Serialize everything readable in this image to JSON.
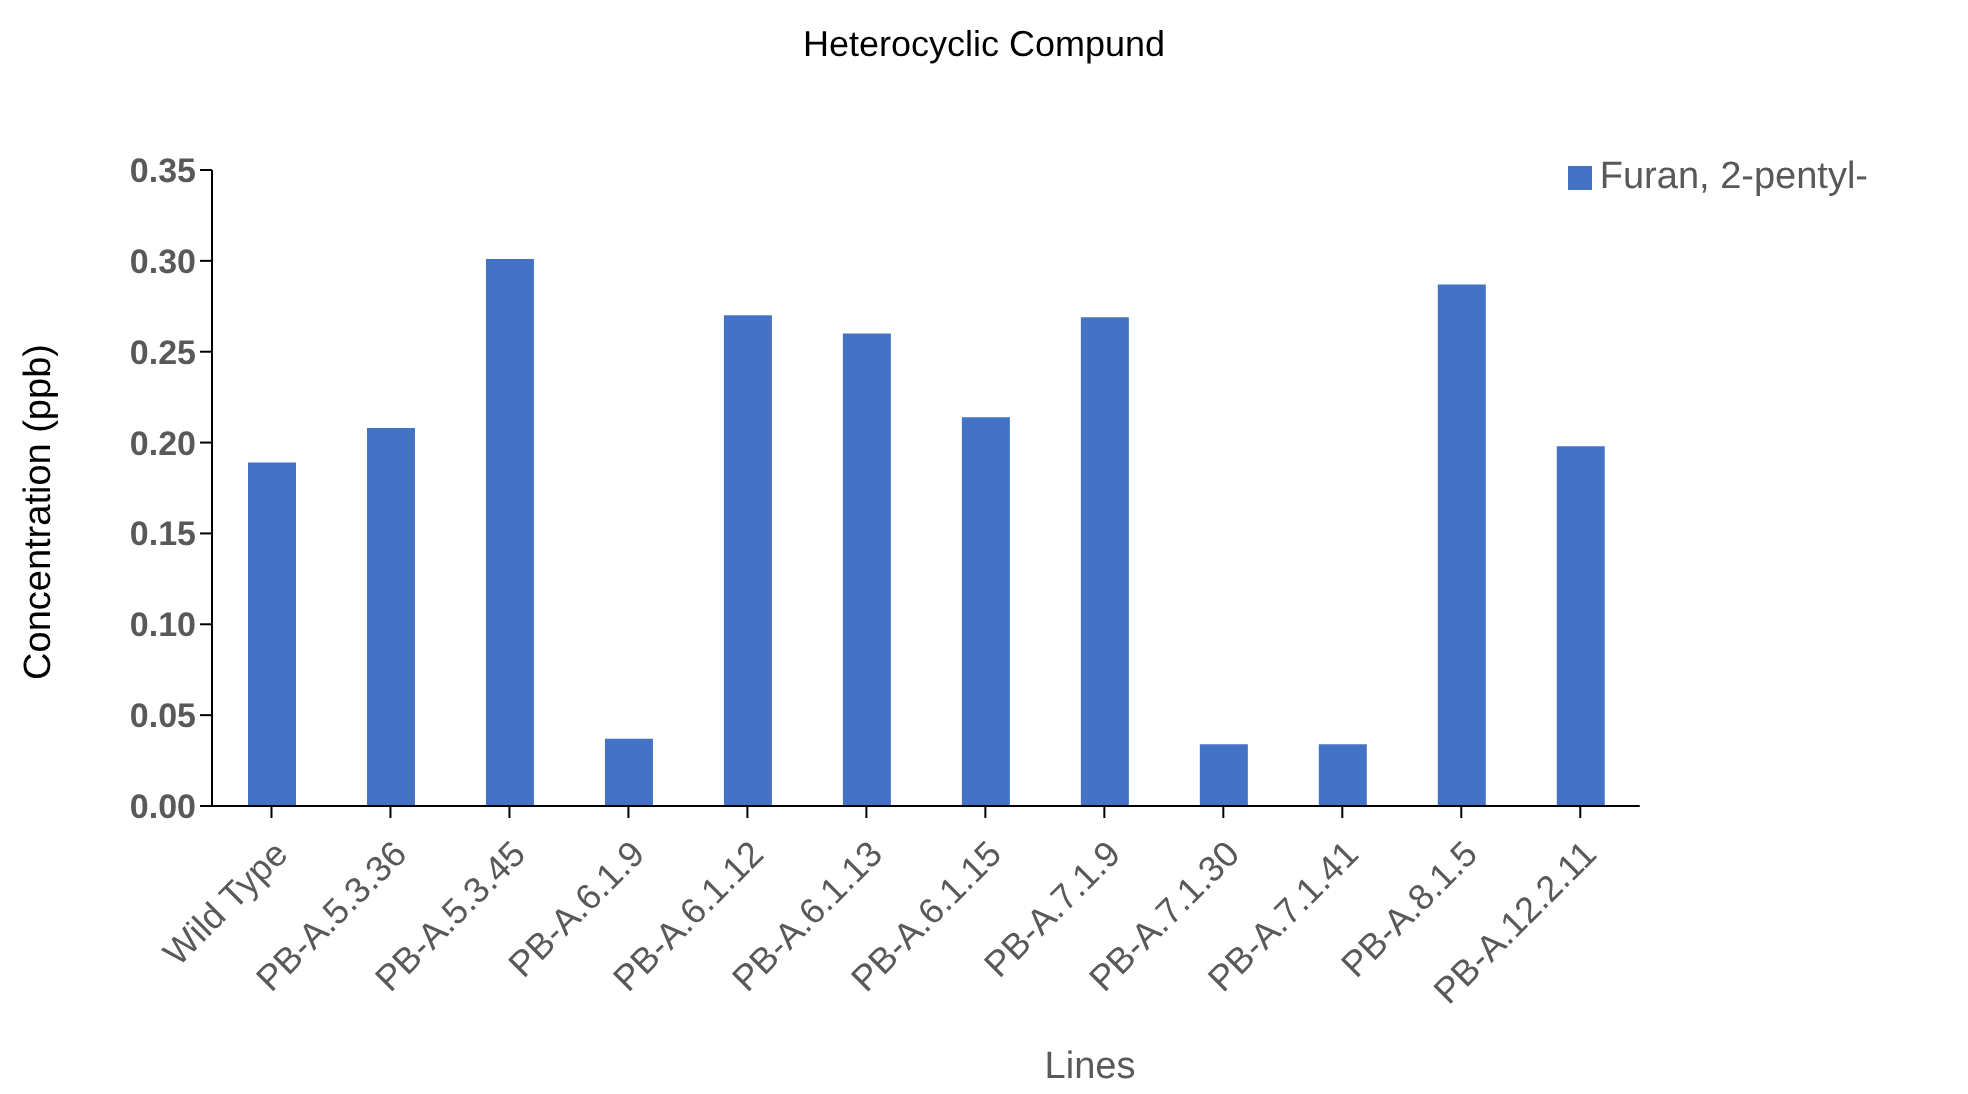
{
  "chart_data": {
    "type": "bar",
    "title": "Heterocyclic Compund",
    "xlabel": "Lines",
    "ylabel": "Concentration (ppb)",
    "categories": [
      "Wild Type",
      "PB-A.5.3.36",
      "PB-A.5.3.45",
      "PB-A.6.1.9",
      "PB-A.6.1.12",
      "PB-A.6.1.13",
      "PB-A.6.1.15",
      "PB-A.7.1.9",
      "PB-A.7.1.30",
      "PB-A.7.1.41",
      "PB-A.8.1.5",
      "PB-A.12.2.11"
    ],
    "series": [
      {
        "name": "Furan, 2-pentyl-",
        "color": "#4472c4",
        "values": [
          0.189,
          0.208,
          0.301,
          0.037,
          0.27,
          0.26,
          0.214,
          0.269,
          0.034,
          0.034,
          0.287,
          0.198
        ]
      }
    ],
    "ylim": [
      0,
      0.35
    ],
    "yticks": [
      {
        "value": 0,
        "label": "0.00"
      },
      {
        "value": 0.05,
        "label": "0.05"
      },
      {
        "value": 0.1,
        "label": "0.10"
      },
      {
        "value": 0.15,
        "label": "0.15"
      },
      {
        "value": 0.2,
        "label": "0.20"
      },
      {
        "value": 0.25,
        "label": "0.25"
      },
      {
        "value": 0.3,
        "label": "0.30"
      },
      {
        "value": 0.35,
        "label": "0.35"
      }
    ],
    "grid": false,
    "legend": "top right"
  }
}
